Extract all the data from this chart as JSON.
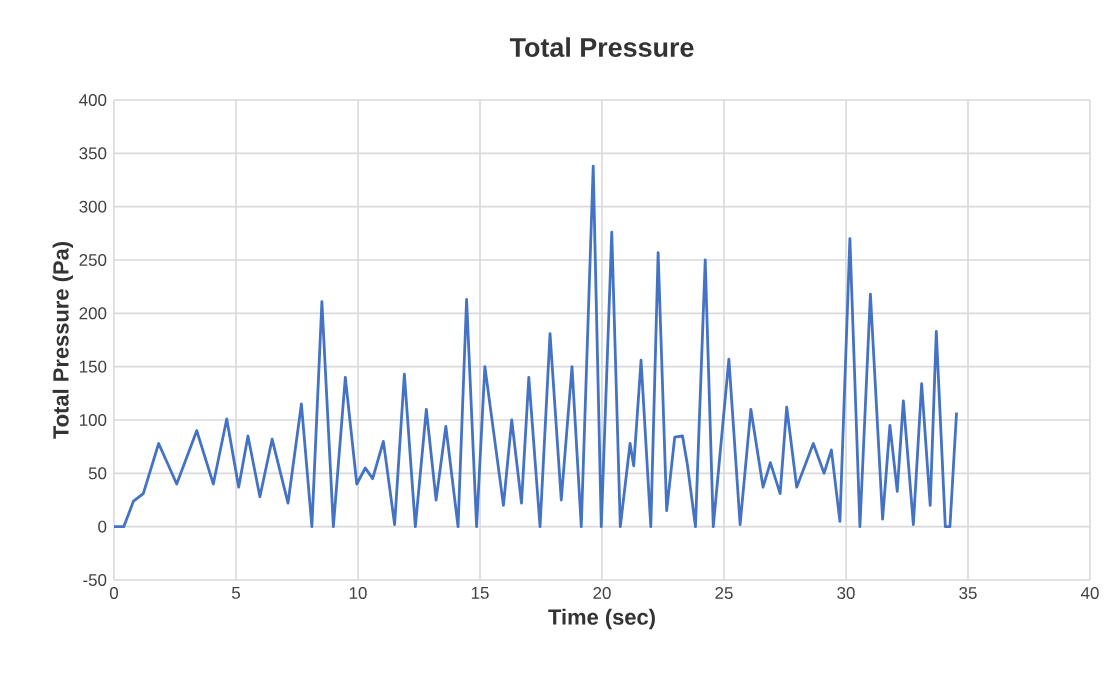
{
  "chart_data": {
    "type": "line",
    "title": "Total Pressure",
    "xlabel": "Time (sec)",
    "ylabel": "Total Pressure (Pa)",
    "x": [
      0,
      0.4,
      0.8,
      1.2,
      1.83,
      2.57,
      3.39,
      4.07,
      4.62,
      5.11,
      5.49,
      5.98,
      6.48,
      7.13,
      7.68,
      8.11,
      8.52,
      8.99,
      9.48,
      9.95,
      10.3,
      10.6,
      11.04,
      11.5,
      11.9,
      12.35,
      12.8,
      13.2,
      13.6,
      14.1,
      14.45,
      14.86,
      15.2,
      15.96,
      16.3,
      16.7,
      17.0,
      17.46,
      17.87,
      18.33,
      18.77,
      19.15,
      19.64,
      19.97,
      20.4,
      20.75,
      21.15,
      21.3,
      21.6,
      22.0,
      22.3,
      22.65,
      22.98,
      23.3,
      23.5,
      23.83,
      24.23,
      24.56,
      25.2,
      25.66,
      26.1,
      26.6,
      26.9,
      27.3,
      27.57,
      27.98,
      28.66,
      29.1,
      29.4,
      29.75,
      30.16,
      30.57,
      31.0,
      31.5,
      31.8,
      32.1,
      32.35,
      32.76,
      33.1,
      33.45,
      33.7,
      34.07,
      34.26,
      34.53
    ],
    "series": [
      {
        "color": "#4472c4",
        "values": [
          0,
          0,
          24,
          31,
          78,
          40,
          90,
          40,
          101,
          37,
          85,
          28,
          82,
          22,
          115,
          0,
          211,
          0,
          140,
          40,
          55,
          45,
          80,
          2,
          143,
          0,
          110,
          25,
          94,
          0,
          213,
          0,
          150,
          20,
          100,
          22,
          140,
          0,
          181,
          25,
          150,
          0,
          338,
          0,
          276,
          0,
          78,
          57,
          156,
          0,
          257,
          15,
          84,
          85,
          58,
          0,
          250,
          0,
          157,
          2,
          110,
          37,
          60,
          31,
          112,
          37,
          78,
          50,
          72,
          5,
          270,
          0,
          218,
          7,
          95,
          33,
          118,
          2,
          134,
          20,
          183,
          0,
          0,
          107
        ]
      }
    ],
    "xlim": [
      0,
      40
    ],
    "xticks": [
      0,
      5,
      10,
      15,
      20,
      25,
      30,
      35,
      40
    ],
    "ylim": [
      -50,
      400
    ],
    "yticks": [
      -50,
      0,
      50,
      100,
      150,
      200,
      250,
      300,
      350,
      400
    ],
    "grid": true,
    "marker": "none",
    "line_style": "solid"
  }
}
